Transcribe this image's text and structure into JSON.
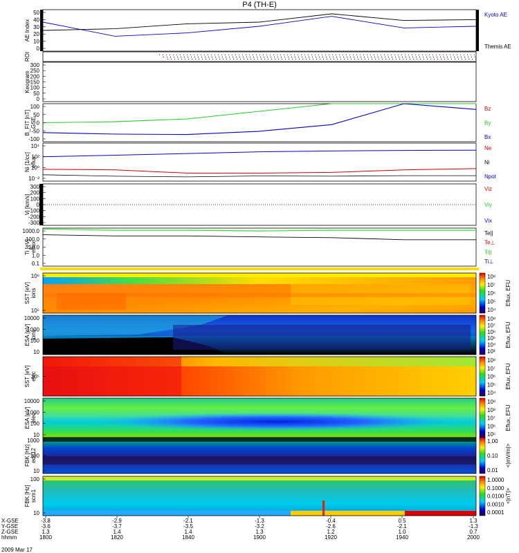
{
  "title": "P4 (TH-E)",
  "date_label": "2009 Mar 17",
  "colors": {
    "red": "#d00000",
    "green": "#22cc22",
    "blue": "#0000cc",
    "black": "#000000"
  },
  "x_axis": {
    "row_labels": [
      "X-GSE",
      "Y-GSE",
      "Z-GSE",
      "hhmm"
    ],
    "ticks": [
      {
        "x": "-3.8",
        "y": "-3.6",
        "z": "1.3",
        "t": "1800"
      },
      {
        "x": "-2.9",
        "y": "-3.7",
        "z": "1.4",
        "t": "1820"
      },
      {
        "x": "-2.1",
        "y": "-3.5",
        "z": "1.4",
        "t": "1840"
      },
      {
        "x": "-1.3",
        "y": "-3.2",
        "z": "1.3",
        "t": "1900"
      },
      {
        "x": "-0.4",
        "y": "-2.6",
        "z": "1.2",
        "t": "1920"
      },
      {
        "x": "0.5",
        "y": "-2.1",
        "z": "1.0",
        "t": "1940"
      },
      {
        "x": "1.3",
        "y": "-1.3",
        "z": "0.7",
        "t": "2000"
      }
    ]
  },
  "panels": [
    {
      "id": "ae",
      "ylabel": "AE Index",
      "ticks": [
        "50",
        "40",
        "30",
        "20",
        "10",
        "0"
      ],
      "legend": [
        {
          "text": "Kyoto AE",
          "color": "blue"
        },
        {
          "text": "Themis AE",
          "color": "black"
        }
      ]
    },
    {
      "id": "roi",
      "ylabel": "ROI",
      "ticks": [],
      "legend": []
    },
    {
      "id": "keogram",
      "ylabel": "Keogram",
      "ticks": [
        "300",
        "250",
        "200",
        "150",
        "100",
        "50",
        "0"
      ],
      "legend": []
    },
    {
      "id": "bfit",
      "ylabel": "B_FIT [nT]",
      "ylabel2": "GSE",
      "ticks": [
        "100",
        "50",
        "0",
        "-50",
        "-100"
      ],
      "legend": [
        {
          "text": "Bz",
          "color": "red"
        },
        {
          "text": "By",
          "color": "green"
        },
        {
          "text": "Bx",
          "color": "blue"
        }
      ]
    },
    {
      "id": "ni",
      "ylabel": "Ni [1/cc]",
      "ylabel2": "eflux",
      "ticks": [
        "10⁴",
        "10²",
        "10⁰",
        "10⁻²"
      ],
      "legend": [
        {
          "text": "Ne",
          "color": "red"
        },
        {
          "text": "Ni",
          "color": "black"
        },
        {
          "text": "Npot",
          "color": "blue"
        }
      ]
    },
    {
      "id": "vi",
      "ylabel": "Vi [km/s]",
      "ticks": [
        "300",
        "200",
        "100",
        "0",
        "-100",
        "-200",
        "-300"
      ],
      "legend": [
        {
          "text": "Viz",
          "color": "red"
        },
        {
          "text": "Viy",
          "color": "green"
        },
        {
          "text": "Vix",
          "color": "blue"
        }
      ]
    },
    {
      "id": "ti",
      "ylabel": "Ti [eV]",
      "ylabel2": "eflux",
      "ticks": [
        "1000.0",
        "100.0",
        "10.0",
        "1.0",
        "0.1"
      ],
      "legend": [
        {
          "text": "Te||",
          "color": "black"
        },
        {
          "text": "Te⊥",
          "color": "red"
        },
        {
          "text": "Ti||",
          "color": "green"
        },
        {
          "text": "Ti⊥",
          "color": "blue"
        }
      ]
    },
    {
      "id": "sst_i",
      "ylabel": "SST [eV]",
      "ylabel2": "ions",
      "ticks": [
        "10⁶",
        "10⁵"
      ],
      "cbar": "Eflux, EFU",
      "cbar_ticks": [
        "10⁸",
        "10⁷",
        "10⁶",
        "10⁵",
        "10⁴"
      ],
      "legend": []
    },
    {
      "id": "esa_i",
      "ylabel": "ESA [eV]",
      "ylabel2": "ions",
      "ticks": [
        "10000",
        "1000",
        "100",
        "10"
      ],
      "cbar": "Eflux, EFU",
      "cbar_ticks": [
        "10⁸",
        "10⁷",
        "10⁶",
        "10⁵",
        "10⁴",
        "10³"
      ],
      "legend": []
    },
    {
      "id": "sst_e",
      "ylabel": "SST [eV]",
      "ylabel2": "elec",
      "ticks": [
        "10⁵"
      ],
      "cbar": "Eflux, EFU",
      "cbar_ticks": [
        "10⁸",
        "10⁷",
        "10⁶",
        "10⁵",
        "10⁴"
      ],
      "legend": []
    },
    {
      "id": "esa_e",
      "ylabel": "ESA [eV]",
      "ylabel2": "elec",
      "ticks": [
        "10000",
        "1000",
        "100",
        "10"
      ],
      "cbar": "Eflux, EFU",
      "cbar_ticks": [
        "10⁹",
        "10⁸",
        "10⁷",
        "10⁶",
        "10⁵"
      ],
      "legend": []
    },
    {
      "id": "fbk1",
      "ylabel": "FBK [Hz]",
      "ylabel2": "edc12",
      "ticks": [
        "1000",
        "100",
        "10"
      ],
      "cbar": "<|mV/m|>",
      "cbar_ticks": [
        "1.00",
        "0.10",
        "0.01"
      ],
      "legend": []
    },
    {
      "id": "fbk2",
      "ylabel": "FBK [Hz]",
      "ylabel2": "scm1",
      "ticks": [
        "100",
        "10"
      ],
      "cbar": "<|nT|>",
      "cbar_ticks": [
        "1.0000",
        "0.1000",
        "0.0100",
        "0.0010",
        "0.0001"
      ],
      "legend": []
    }
  ],
  "chart_data": [
    {
      "type": "line",
      "title": "",
      "ylabel": "AE Index",
      "ylim": [
        0,
        50
      ],
      "x": [
        "1800",
        "1820",
        "1840",
        "1900",
        "1920",
        "1940",
        "2000"
      ],
      "series": [
        {
          "name": "Kyoto AE",
          "values": [
            35,
            18,
            22,
            30,
            42,
            28,
            30
          ]
        },
        {
          "name": "Themis AE",
          "values": [
            25,
            27,
            33,
            35,
            45,
            37,
            38
          ]
        }
      ]
    },
    {
      "type": "line",
      "ylabel": "B_FIT [nT]",
      "ylim": [
        -100,
        100
      ],
      "x": [
        "1800",
        "1820",
        "1840",
        "1900",
        "1920",
        "1940",
        "2000"
      ],
      "series": [
        {
          "name": "Bx",
          "values": [
            -52,
            -60,
            -62,
            -45,
            -10,
            100,
            70
          ]
        },
        {
          "name": "By",
          "values": [
            0,
            5,
            20,
            60,
            100,
            100,
            100
          ]
        }
      ]
    },
    {
      "type": "line",
      "ylabel": "Ni [1/cc]",
      "ylim": [
        0.01,
        100000
      ],
      "x": [
        "1800",
        "1820",
        "1840",
        "1900",
        "1920",
        "1940",
        "2000"
      ],
      "series": [
        {
          "name": "Ne",
          "values": [
            1.5,
            1.2,
            0.3,
            0.3,
            0.4,
            1.2,
            2.0
          ]
        },
        {
          "name": "Ni",
          "values": [
            0.15,
            0.08,
            0.06,
            0.09,
            0.08,
            0.1,
            0.1
          ]
        },
        {
          "name": "Npot",
          "values": [
            300,
            600,
            1200,
            2500,
            3500,
            4500,
            5000
          ]
        }
      ]
    },
    {
      "type": "line",
      "ylabel": "Ti [eV]",
      "ylim": [
        0.1,
        1000
      ],
      "x": [
        "1800",
        "1820",
        "1840",
        "1900",
        "1920",
        "1940",
        "2000"
      ],
      "series": [
        {
          "name": "Te||",
          "values": [
            200,
            150,
            150,
            120,
            100,
            60,
            60
          ]
        },
        {
          "name": "Ti||",
          "values": [
            800,
            600,
            600,
            500,
            600,
            600,
            600
          ]
        }
      ]
    },
    {
      "type": "heatmap",
      "ylabel": "SST [eV] ions",
      "x": [
        "1800",
        "2000"
      ]
    },
    {
      "type": "heatmap",
      "ylabel": "ESA [eV] ions",
      "x": [
        "1800",
        "2000"
      ]
    },
    {
      "type": "heatmap",
      "ylabel": "SST [eV] elec",
      "x": [
        "1800",
        "2000"
      ]
    },
    {
      "type": "heatmap",
      "ylabel": "ESA [eV] elec",
      "x": [
        "1800",
        "2000"
      ]
    },
    {
      "type": "heatmap",
      "ylabel": "FBK [Hz] edc12",
      "x": [
        "1800",
        "2000"
      ]
    },
    {
      "type": "heatmap",
      "ylabel": "FBK [Hz] scm1",
      "x": [
        "1800",
        "2000"
      ]
    }
  ]
}
